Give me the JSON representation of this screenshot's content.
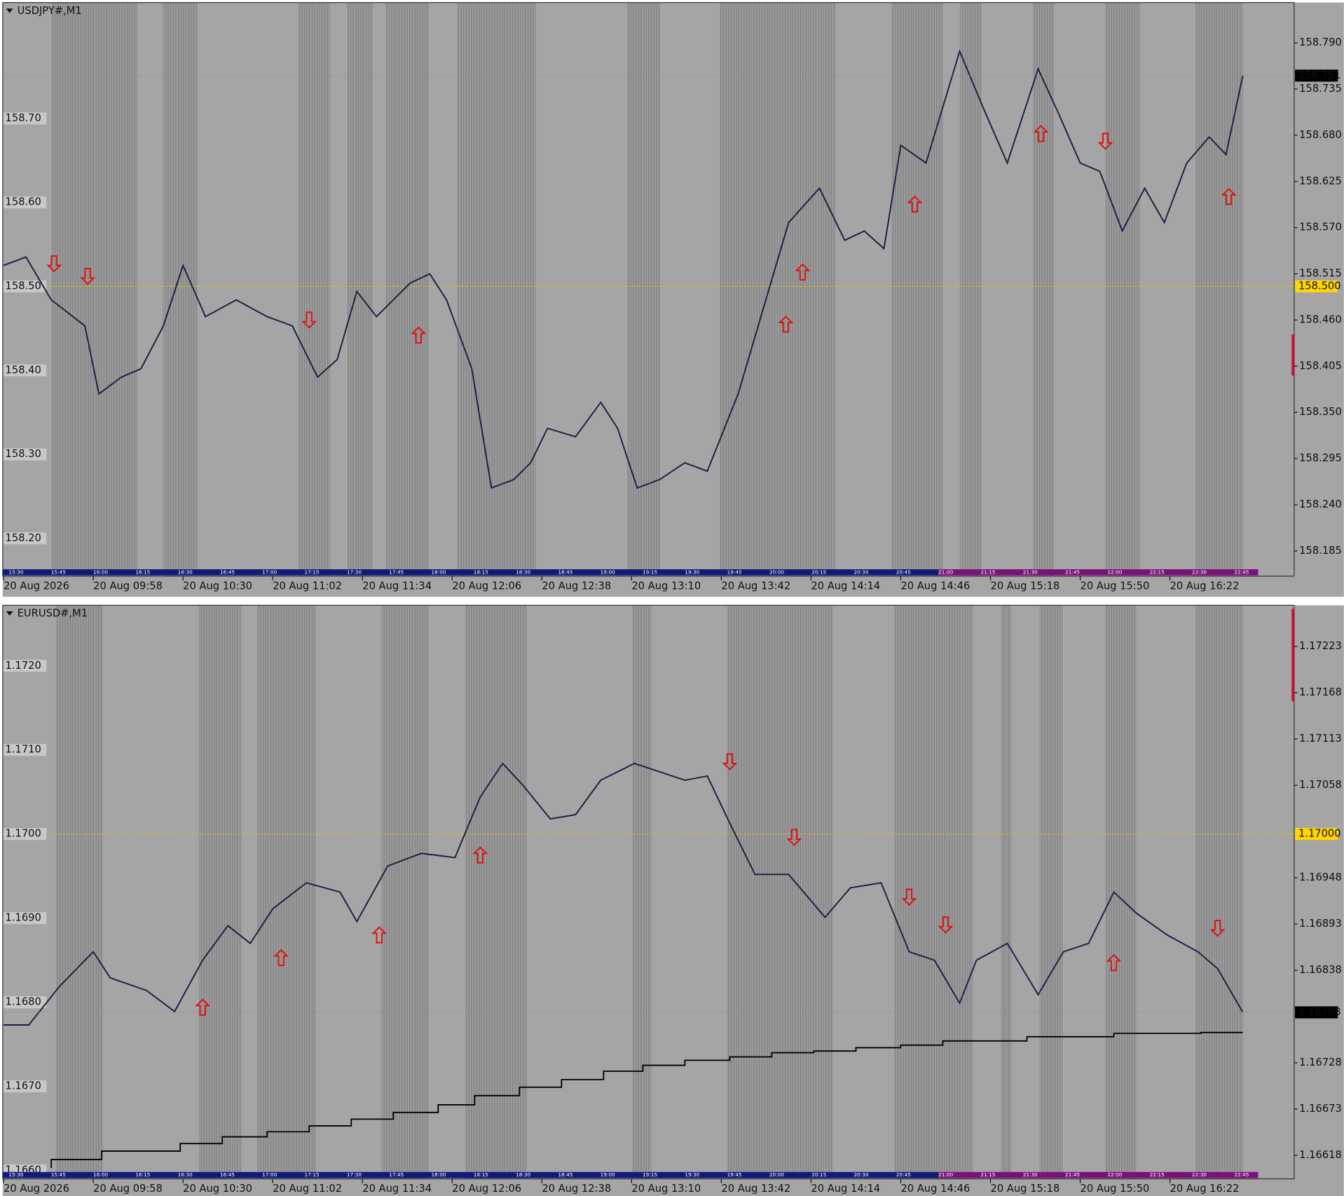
{
  "chart_data": [
    {
      "type": "line",
      "symbol": "USDJPY#,M1",
      "x": [
        0,
        8,
        17,
        29,
        34,
        42,
        49,
        57,
        64,
        72,
        83,
        94,
        103,
        112,
        119,
        126,
        133,
        145,
        152,
        158,
        167,
        174,
        182,
        188,
        194,
        204,
        213,
        219,
        226,
        234,
        243,
        251,
        262,
        271,
        280,
        291,
        300,
        307,
        314,
        320,
        329,
        341,
        350,
        358,
        369,
        376,
        384,
        391,
        399,
        407,
        414,
        422,
        430,
        436,
        442
      ],
      "series": [
        {
          "color": "#1e1e46",
          "values": [
            158.525,
            158.535,
            158.484,
            158.453,
            158.372,
            158.392,
            158.402,
            158.453,
            158.525,
            158.464,
            158.484,
            158.464,
            158.453,
            158.392,
            158.413,
            158.494,
            158.464,
            158.504,
            158.515,
            158.484,
            158.402,
            158.26,
            158.27,
            158.29,
            158.331,
            158.321,
            158.362,
            158.331,
            158.26,
            158.27,
            158.29,
            158.28,
            158.372,
            158.474,
            158.576,
            158.617,
            158.555,
            158.566,
            158.545,
            158.668,
            158.647,
            158.78,
            158.708,
            158.647,
            158.759,
            158.708,
            158.647,
            158.637,
            158.566,
            158.617,
            158.576,
            158.647,
            158.678,
            158.657,
            158.751
          ]
        }
      ],
      "xlim": [
        0,
        460
      ],
      "xticks": [
        {
          "value": 0,
          "label": "20 Aug 2026"
        },
        {
          "value": 32,
          "label": "20 Aug 09:58"
        },
        {
          "value": 64,
          "label": "20 Aug 10:30"
        },
        {
          "value": 96,
          "label": "20 Aug 11:02"
        },
        {
          "value": 128,
          "label": "20 Aug 11:34"
        },
        {
          "value": 160,
          "label": "20 Aug 12:06"
        },
        {
          "value": 192,
          "label": "20 Aug 12:38"
        },
        {
          "value": 224,
          "label": "20 Aug 13:10"
        },
        {
          "value": 256,
          "label": "20 Aug 13:42"
        },
        {
          "value": 288,
          "label": "20 Aug 14:14"
        },
        {
          "value": 320,
          "label": "20 Aug 14:46"
        },
        {
          "value": 352,
          "label": "20 Aug 15:18"
        },
        {
          "value": 384,
          "label": "20 Aug 15:50"
        },
        {
          "value": 416,
          "label": "20 Aug 16:22"
        }
      ],
      "ylim": [
        158.155,
        158.838
      ],
      "yticks": [
        {
          "value": 158.79,
          "label": "158.790"
        },
        158.735,
        {
          "value": 158.68,
          "label": "158.680"
        },
        158.625,
        {
          "value": 158.57,
          "label": "158.570"
        },
        158.515,
        {
          "value": 158.46,
          "label": "158.460"
        },
        158.405,
        {
          "value": 158.35,
          "label": "158.350"
        },
        158.295,
        {
          "value": 158.24,
          "label": "158.240"
        },
        158.185
      ],
      "yticks_left": [
        {
          "value": 158.7,
          "label": "158.70"
        },
        {
          "value": 158.6,
          "label": "158.60"
        },
        {
          "value": 158.5,
          "label": "158.50"
        },
        {
          "value": 158.4,
          "label": "158.40"
        },
        {
          "value": 158.3,
          "label": "158.30"
        },
        {
          "value": 158.2,
          "label": "158.20"
        }
      ],
      "level": {
        "value": 158.5,
        "label": "158.500"
      },
      "current": 158.751,
      "signals": {
        "color": "#e01010",
        "x": [
          18,
          30,
          109,
          148,
          279,
          285,
          325,
          370,
          393,
          437
        ],
        "values": [
          158.527,
          158.512,
          158.46,
          158.442,
          158.455,
          158.517,
          158.598,
          158.682,
          158.673,
          158.607
        ],
        "direction": [
          "down",
          "down",
          "down",
          "up",
          "up",
          "up",
          "up",
          "up",
          "down",
          "up"
        ]
      },
      "session_labels": [
        "15:30",
        "15:45",
        "16:00",
        "16:15",
        "16:30",
        "16:45",
        "17:00",
        "17:15",
        "17:30",
        "17:45",
        "18:00",
        "18:15",
        "18:30",
        "18:45",
        "19:00",
        "19:15",
        "19:30",
        "19:45",
        "20:00",
        "20:15",
        "20:30",
        "20:45",
        "21:00",
        "21:15",
        "21:30",
        "21:45",
        "22:00",
        "22:15",
        "22:30",
        "22:45"
      ]
    },
    {
      "type": "line",
      "symbol": "EURUSD#,M1",
      "x": [
        0,
        9,
        20,
        32,
        38,
        51,
        61,
        71,
        80,
        88,
        96,
        108,
        120,
        126,
        137,
        149,
        161,
        170,
        178,
        185,
        195,
        204,
        213,
        225,
        234,
        243,
        251,
        259,
        268,
        280,
        293,
        302,
        313,
        323,
        332,
        341,
        347,
        358,
        369,
        378,
        387,
        396,
        404,
        415,
        426,
        433,
        442
      ],
      "series": [
        {
          "color": "#1e1e46",
          "values": [
            1.16773,
            1.16773,
            1.16819,
            1.1686,
            1.16829,
            1.16814,
            1.16789,
            1.1685,
            1.16891,
            1.1687,
            1.16911,
            1.16942,
            1.16931,
            1.16896,
            1.16962,
            1.16977,
            1.16972,
            1.17044,
            1.17084,
            1.17059,
            1.17018,
            1.17023,
            1.17064,
            1.17084,
            1.17074,
            1.17064,
            1.17069,
            1.17013,
            1.16952,
            1.16952,
            1.16901,
            1.16936,
            1.16942,
            1.1686,
            1.1685,
            1.16799,
            1.1685,
            1.1687,
            1.16809,
            1.1686,
            1.1687,
            1.16931,
            1.16906,
            1.1688,
            1.1686,
            1.1684,
            1.16788
          ]
        }
      ],
      "indicator": {
        "color": "#000000",
        "x": [
          17,
          35,
          63,
          78,
          94,
          109,
          124,
          139,
          155,
          168,
          184,
          199,
          214,
          228,
          243,
          259,
          274,
          289,
          304,
          320,
          335,
          365,
          396,
          427,
          442
        ],
        "values": [
          1.16603,
          1.16613,
          1.16623,
          1.16632,
          1.1664,
          1.16646,
          1.16653,
          1.16661,
          1.16669,
          1.16678,
          1.16689,
          1.16699,
          1.16708,
          1.16718,
          1.16725,
          1.16731,
          1.16735,
          1.1674,
          1.16742,
          1.16746,
          1.16749,
          1.16754,
          1.16759,
          1.16763,
          1.16764
        ]
      },
      "xlim": [
        0,
        460
      ],
      "xticks": [
        {
          "value": 0,
          "label": "20 Aug 2026"
        },
        {
          "value": 32,
          "label": "20 Aug 09:58"
        },
        {
          "value": 64,
          "label": "20 Aug 10:30"
        },
        {
          "value": 96,
          "label": "20 Aug 11:02"
        },
        {
          "value": 128,
          "label": "20 Aug 11:34"
        },
        {
          "value": 160,
          "label": "20 Aug 12:06"
        },
        {
          "value": 192,
          "label": "20 Aug 12:38"
        },
        {
          "value": 224,
          "label": "20 Aug 13:10"
        },
        {
          "value": 256,
          "label": "20 Aug 13:42"
        },
        {
          "value": 288,
          "label": "20 Aug 14:14"
        },
        {
          "value": 320,
          "label": "20 Aug 14:46"
        },
        {
          "value": 352,
          "label": "20 Aug 15:18"
        },
        {
          "value": 384,
          "label": "20 Aug 15:50"
        },
        {
          "value": 416,
          "label": "20 Aug 16:22"
        }
      ],
      "ylim": [
        1.1659,
        1.17272
      ],
      "yticks": [
        1.17223,
        1.17168,
        1.17113,
        1.17058,
        1.16948,
        1.16893,
        1.16838,
        1.16728,
        1.16673,
        1.16618
      ],
      "yticks_left": [
        {
          "value": 1.172,
          "label": "1.1720"
        },
        {
          "value": 1.171,
          "label": "1.1710"
        },
        {
          "value": 1.17,
          "label": "1.1700"
        },
        {
          "value": 1.169,
          "label": "1.1690"
        },
        {
          "value": 1.168,
          "label": "1.1680"
        },
        {
          "value": 1.167,
          "label": "1.1670"
        },
        {
          "value": 1.166,
          "label": "1.1660"
        }
      ],
      "level": {
        "value": 1.17,
        "label": "1.17000"
      },
      "current": 1.16788,
      "signals": {
        "color": "#e01010",
        "x": [
          71,
          99,
          134,
          170,
          259,
          282,
          323,
          336,
          396,
          433
        ],
        "values": [
          1.16794,
          1.16853,
          1.1688,
          1.16975,
          1.17086,
          1.16996,
          1.16925,
          1.16892,
          1.16847,
          1.16888
        ],
        "direction": [
          "up",
          "up",
          "up",
          "up",
          "down",
          "down",
          "down",
          "down",
          "up",
          "down"
        ]
      },
      "session_labels": [
        "15:30",
        "15:45",
        "16:00",
        "16:15",
        "16:30",
        "16:45",
        "17:00",
        "17:15",
        "17:30",
        "17:45",
        "18:00",
        "18:15",
        "18:30",
        "18:45",
        "19:00",
        "19:15",
        "19:30",
        "19:45",
        "20:00",
        "20:15",
        "20:30",
        "20:45",
        "21:00",
        "21:15",
        "21:30",
        "21:45",
        "22:00",
        "22:15",
        "22:30",
        "22:45"
      ]
    }
  ]
}
